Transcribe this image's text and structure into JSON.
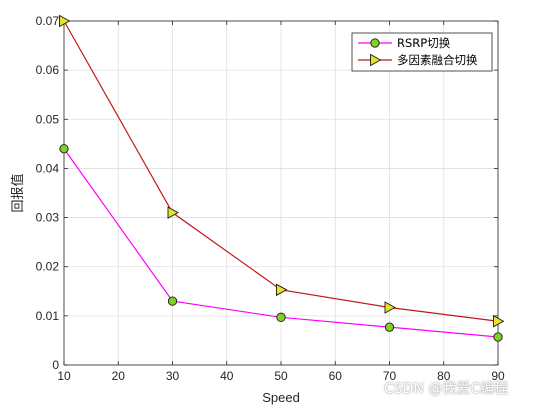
{
  "chart_data": {
    "type": "line",
    "x": [
      10,
      30,
      50,
      70,
      90
    ],
    "xlabel": "Speed",
    "ylabel": "回报值",
    "xlim": [
      10,
      90
    ],
    "ylim": [
      0,
      0.07
    ],
    "xticks": [
      10,
      20,
      30,
      40,
      50,
      60,
      70,
      80,
      90
    ],
    "yticks": [
      0,
      0.01,
      0.02,
      0.03,
      0.04,
      0.05,
      0.06,
      0.07
    ],
    "ytick_labels": [
      "0",
      "0.01",
      "0.02",
      "0.03",
      "0.04",
      "0.05",
      "0.06",
      "0.07"
    ],
    "grid": true,
    "legend_position": "top-right",
    "series": [
      {
        "name": "RSRP切换",
        "values": [
          0.044,
          0.013,
          0.0097,
          0.0077,
          0.0057
        ],
        "color": "#ff00ff",
        "marker": "circle",
        "marker_color": "#7fd320"
      },
      {
        "name": "多因素融合切换",
        "values": [
          0.07,
          0.031,
          0.0153,
          0.0117,
          0.0089
        ],
        "color": "#c0191b",
        "marker": "triangle-right",
        "marker_color": "#e8e12a"
      }
    ]
  },
  "watermark": "CSDN @我爱C编程"
}
